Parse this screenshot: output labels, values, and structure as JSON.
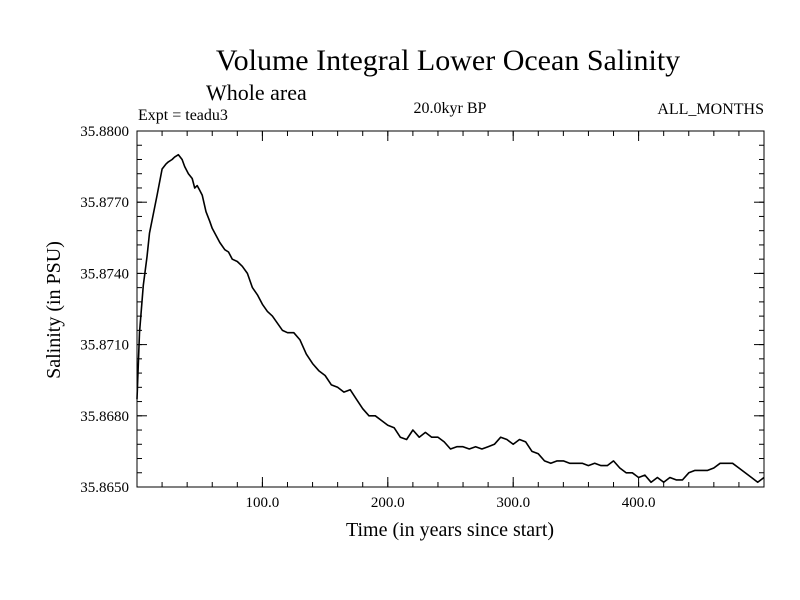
{
  "chart_data": {
    "type": "line",
    "title": "Volume Integral Lower Ocean Salinity",
    "subtitle": "Whole area",
    "annotations": {
      "left": "Expt = teadu3",
      "center": "20.0kyr BP",
      "right": "ALL_MONTHS"
    },
    "xlabel": "Time (in years since start)",
    "ylabel": "Salinity (in PSU)",
    "xlim": [
      0,
      500
    ],
    "ylim": [
      35.865,
      35.88
    ],
    "x_ticks": [
      100,
      200,
      300,
      400
    ],
    "x_tick_labels": [
      "100.0",
      "200.0",
      "300.0",
      "400.0"
    ],
    "y_ticks": [
      35.865,
      35.868,
      35.871,
      35.874,
      35.877,
      35.88
    ],
    "y_tick_labels": [
      "35.8650",
      "35.8680",
      "35.8710",
      "35.8740",
      "35.8770",
      "35.8800"
    ],
    "line_color": "#000000",
    "series": [
      {
        "name": "teadu3",
        "x": [
          0,
          2,
          5,
          8,
          10,
          13,
          16,
          20,
          23,
          25,
          28,
          30,
          33,
          36,
          38,
          41,
          44,
          46,
          48,
          50,
          52,
          55,
          58,
          60,
          63,
          66,
          70,
          73,
          76,
          80,
          84,
          88,
          92,
          96,
          100,
          104,
          108,
          112,
          116,
          120,
          125,
          130,
          135,
          140,
          145,
          150,
          155,
          160,
          165,
          170,
          175,
          180,
          185,
          190,
          195,
          200,
          205,
          210,
          215,
          220,
          225,
          230,
          235,
          240,
          245,
          250,
          255,
          260,
          265,
          270,
          275,
          280,
          285,
          290,
          295,
          300,
          305,
          310,
          315,
          320,
          325,
          330,
          335,
          340,
          345,
          350,
          355,
          360,
          365,
          370,
          375,
          380,
          385,
          390,
          395,
          400,
          405,
          410,
          415,
          420,
          425,
          430,
          435,
          440,
          445,
          450,
          455,
          460,
          465,
          470,
          475,
          480,
          485,
          490,
          495,
          500
        ],
        "values": [
          35.8687,
          35.8715,
          35.8735,
          35.8747,
          35.8757,
          35.8765,
          35.8773,
          35.8784,
          35.8786,
          35.8787,
          35.8788,
          35.8789,
          35.879,
          35.8788,
          35.8785,
          35.8782,
          35.878,
          35.8776,
          35.8777,
          35.8775,
          35.8773,
          35.8766,
          35.8762,
          35.8759,
          35.8756,
          35.8753,
          35.875,
          35.8749,
          35.8746,
          35.8745,
          35.8743,
          35.874,
          35.8734,
          35.8731,
          35.8727,
          35.8724,
          35.8722,
          35.8719,
          35.8716,
          35.8715,
          35.8715,
          35.8712,
          35.8706,
          35.8702,
          35.8699,
          35.8697,
          35.8693,
          35.8692,
          35.869,
          35.8691,
          35.8687,
          35.8683,
          35.868,
          35.868,
          35.8678,
          35.8676,
          35.8675,
          35.8671,
          35.867,
          35.8674,
          35.8671,
          35.8673,
          35.8671,
          35.8671,
          35.8669,
          35.8666,
          35.8667,
          35.8667,
          35.8666,
          35.8667,
          35.8666,
          35.8667,
          35.8668,
          35.8671,
          35.867,
          35.8668,
          35.867,
          35.8669,
          35.8665,
          35.8664,
          35.8661,
          35.866,
          35.8661,
          35.8661,
          35.866,
          35.866,
          35.866,
          35.8659,
          35.866,
          35.8659,
          35.8659,
          35.8661,
          35.8658,
          35.8656,
          35.8656,
          35.8654,
          35.8655,
          35.8652,
          35.8654,
          35.8652,
          35.8654,
          35.8653,
          35.8653,
          35.8656,
          35.8657,
          35.8657,
          35.8657,
          35.8658,
          35.866,
          35.866,
          35.866,
          35.8658,
          35.8656,
          35.8654,
          35.8652,
          35.8654
        ]
      }
    ]
  }
}
